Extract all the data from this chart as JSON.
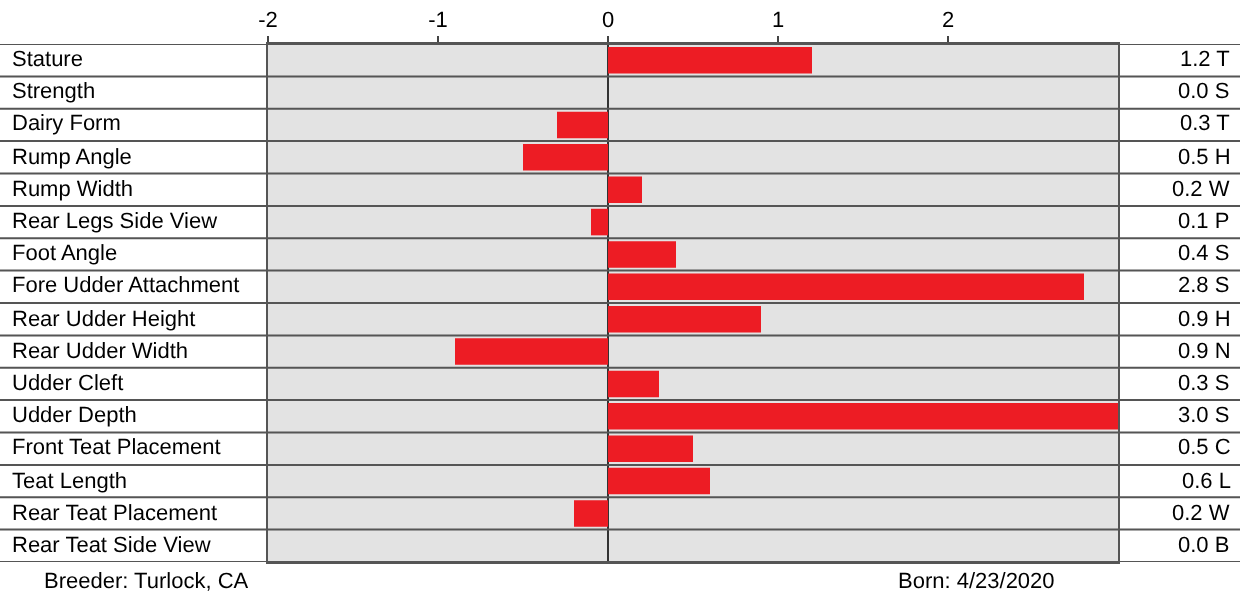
{
  "chart_data": {
    "type": "bar",
    "orientation": "horizontal",
    "categories": [
      "Stature",
      "Strength",
      "Dairy Form",
      "Rump Angle",
      "Rump Width",
      "Rear Legs Side View",
      "Foot Angle",
      "Fore Udder Attachment",
      "Rear Udder Height",
      "Rear Udder Width",
      "Udder Cleft",
      "Udder Depth",
      "Front Teat Placement",
      "Teat Length",
      "Rear Teat Placement",
      "Rear Teat Side View"
    ],
    "values": [
      1.2,
      0.0,
      -0.3,
      -0.5,
      0.2,
      -0.1,
      0.4,
      2.8,
      0.9,
      -0.9,
      0.3,
      3.0,
      0.5,
      0.6,
      -0.2,
      0.0
    ],
    "color": "#ed1c24",
    "xlim": [
      -2,
      3
    ],
    "xticks": [
      -2,
      -1,
      0,
      1,
      2
    ],
    "grid": "y",
    "legend": false,
    "y2_categories": [
      "1.2 T",
      "0.0 S",
      "0.3 T",
      "0.5 H",
      "0.2 W",
      "0.1 P",
      "0.4 S",
      "2.8 S",
      "0.9 H",
      "0.9 N",
      "0.3 S",
      "3.0 S",
      "0.5 C",
      "0.6 L",
      "0.2 W",
      "0.0 B"
    ],
    "annotations": [
      "Breeder: Turlock, CA",
      "Born: 4/23/2020"
    ]
  }
}
